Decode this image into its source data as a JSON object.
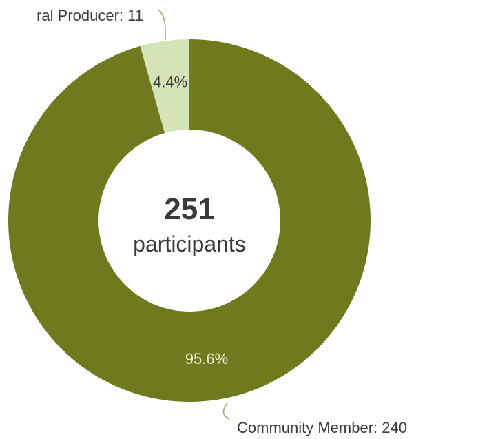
{
  "chart_data": {
    "type": "pie",
    "variant": "donut",
    "center": {
      "value": "251",
      "label": "participants"
    },
    "slices": [
      {
        "category": "Community Member",
        "value": 240,
        "percent_label": "95.6%",
        "ext_label": "Community Member: 240",
        "color": "#6f7a1f",
        "text_color": "#e8ecd0"
      },
      {
        "category": "Agricultural Producer",
        "value": 11,
        "percent_label": "4.4%",
        "ext_label": "ral Producer: 11",
        "color": "#d5e3b8",
        "text_color": "#3a3a3a"
      }
    ],
    "colors": {
      "leader_line": "#9aa06a"
    }
  }
}
